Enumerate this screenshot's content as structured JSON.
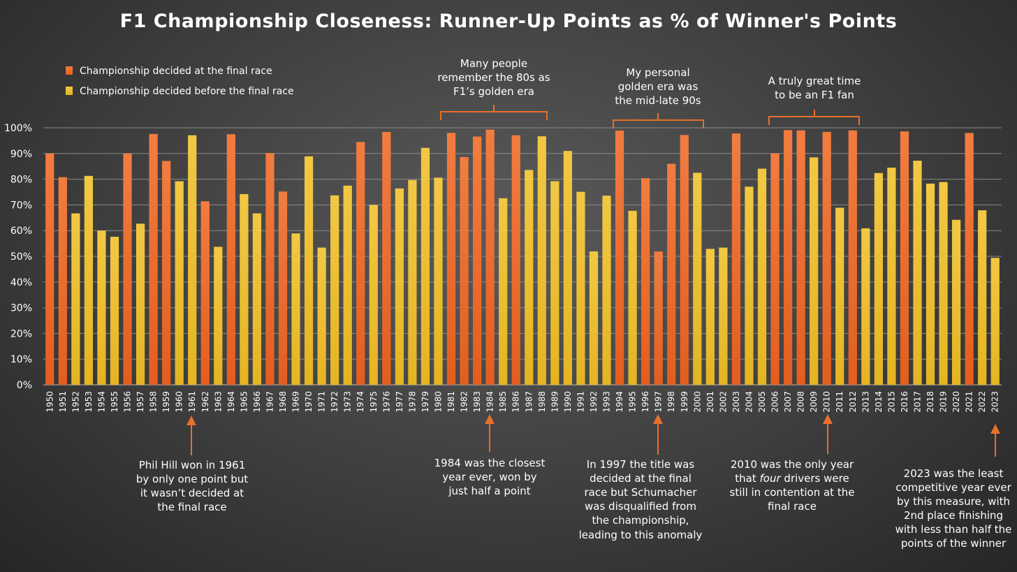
{
  "colors": {
    "final_race": "#ee6a2b",
    "before_final": "#ecc02f",
    "annotation": "#e8702a",
    "grid": "#8a8a8a",
    "text": "#ffffff"
  },
  "chart_data": {
    "type": "bar",
    "title": "F1 Championship Closeness: Runner-Up Points as % of Winner's Points",
    "xlabel": "",
    "ylabel": "",
    "ylim": [
      0,
      100
    ],
    "y_ticks": [
      "0%",
      "10%",
      "20%",
      "30%",
      "40%",
      "50%",
      "60%",
      "70%",
      "80%",
      "90%",
      "100%"
    ],
    "grid": true,
    "legend": [
      {
        "key": "F",
        "label": "Championship decided at the final race",
        "color": "#ee6a2b"
      },
      {
        "key": "B",
        "label": "Championship decided before the final race",
        "color": "#ecc02f"
      }
    ],
    "legend_position": "top-left",
    "categories": [
      "1950",
      "1951",
      "1952",
      "1953",
      "1954",
      "1955",
      "1956",
      "1957",
      "1958",
      "1959",
      "1960",
      "1961",
      "1962",
      "1963",
      "1964",
      "1965",
      "1966",
      "1967",
      "1968",
      "1969",
      "1970",
      "1971",
      "1972",
      "1973",
      "1974",
      "1975",
      "1976",
      "1977",
      "1978",
      "1979",
      "1980",
      "1981",
      "1982",
      "1983",
      "1984",
      "1985",
      "1986",
      "1987",
      "1988",
      "1989",
      "1990",
      "1991",
      "1992",
      "1993",
      "1994",
      "1995",
      "1996",
      "1997",
      "1998",
      "1999",
      "2000",
      "2001",
      "2002",
      "2003",
      "2004",
      "2005",
      "2006",
      "2007",
      "2008",
      "2009",
      "2010",
      "2011",
      "2012",
      "2013",
      "2014",
      "2015",
      "2016",
      "2017",
      "2018",
      "2019",
      "2020",
      "2021",
      "2022",
      "2023"
    ],
    "values": [
      90,
      80.8,
      66.7,
      81.3,
      60,
      57.6,
      90,
      62.7,
      97.6,
      87.1,
      79.2,
      97.1,
      71.4,
      53.7,
      97.5,
      74.2,
      66.7,
      90.2,
      75.2,
      58.9,
      88.9,
      53.4,
      73.7,
      77.5,
      94.5,
      70,
      98.4,
      76.4,
      79.7,
      92.2,
      80.6,
      98,
      88.6,
      96.6,
      99.3,
      72.6,
      97.1,
      83.6,
      96.7,
      79.2,
      91,
      75.1,
      51.9,
      73.6,
      98.9,
      67.7,
      80.4,
      51.9,
      86,
      97.2,
      82.5,
      52.9,
      53.4,
      97.8,
      77.1,
      84.1,
      90.1,
      99.1,
      99,
      88.5,
      98.4,
      68.9,
      99,
      60.9,
      82.4,
      84.5,
      98.6,
      87.2,
      78.3,
      78.9,
      64.2,
      98,
      67.9,
      49.4
    ],
    "decided": [
      "F",
      "F",
      "B",
      "B",
      "B",
      "B",
      "F",
      "B",
      "F",
      "F",
      "B",
      "B",
      "F",
      "B",
      "F",
      "B",
      "B",
      "F",
      "F",
      "B",
      "B",
      "B",
      "B",
      "B",
      "F",
      "B",
      "F",
      "B",
      "B",
      "B",
      "B",
      "F",
      "F",
      "F",
      "F",
      "B",
      "F",
      "B",
      "B",
      "B",
      "B",
      "B",
      "B",
      "B",
      "F",
      "B",
      "F",
      "F",
      "F",
      "F",
      "B",
      "B",
      "B",
      "F",
      "B",
      "B",
      "F",
      "F",
      "F",
      "B",
      "F",
      "B",
      "F",
      "B",
      "B",
      "B",
      "F",
      "B",
      "B",
      "B",
      "B",
      "F",
      "B",
      "B"
    ],
    "annotations": {
      "era_80s": {
        "lines": [
          "Many people",
          "remember the 80s as",
          "F1’s golden era"
        ]
      },
      "era_90s": {
        "lines": [
          "My personal",
          "golden era was",
          "the mid-late 90s"
        ]
      },
      "era_2010s": {
        "lines": [
          "A truly great time",
          "to be an F1 fan"
        ]
      },
      "y1961": {
        "year": "1961",
        "lines": [
          "Phil Hill won in 1961",
          "by only one point but",
          "it wasn’t decided at",
          "the final race"
        ]
      },
      "y1984": {
        "year": "1984",
        "lines": [
          "1984 was the closest",
          "year ever, won by",
          "just half a point"
        ]
      },
      "y1997": {
        "year": "1997",
        "lines": [
          "In 1997 the title was",
          "decided at the final",
          "race but Schumacher",
          "was disqualified from",
          "the championship,",
          "leading to this anomaly"
        ]
      },
      "y2010": {
        "year": "2010",
        "lines": [
          "2010 was the only year",
          "that four drivers were",
          "still in contention at the",
          "final race"
        ],
        "italic_word": "four"
      },
      "y2023": {
        "year": "2023",
        "lines": [
          "2023 was the least",
          "competitive year ever",
          "by this measure, with",
          "2nd place finishing",
          "with less than half the",
          "points of the winner"
        ]
      }
    }
  }
}
